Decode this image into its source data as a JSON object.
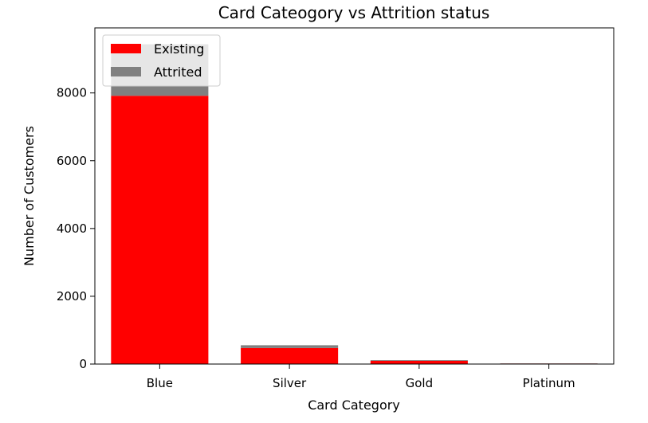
{
  "chart_data": {
    "type": "bar",
    "stacked": true,
    "title": "Card Cateogory vs Attrition status",
    "xlabel": "Card Category",
    "ylabel": "Number of Customers",
    "categories": [
      "Blue",
      "Silver",
      "Gold",
      "Platinum"
    ],
    "series": [
      {
        "name": "Existing",
        "color": "#ff0000",
        "values": [
          7917,
          473,
          95,
          15
        ]
      },
      {
        "name": "Attrited",
        "color": "#808080",
        "values": [
          1519,
          82,
          21,
          5
        ]
      }
    ],
    "ylim": [
      0,
      9920
    ],
    "yticks": [
      0,
      2000,
      4000,
      6000,
      8000
    ],
    "legend_position": "upper-left",
    "grid": false
  }
}
